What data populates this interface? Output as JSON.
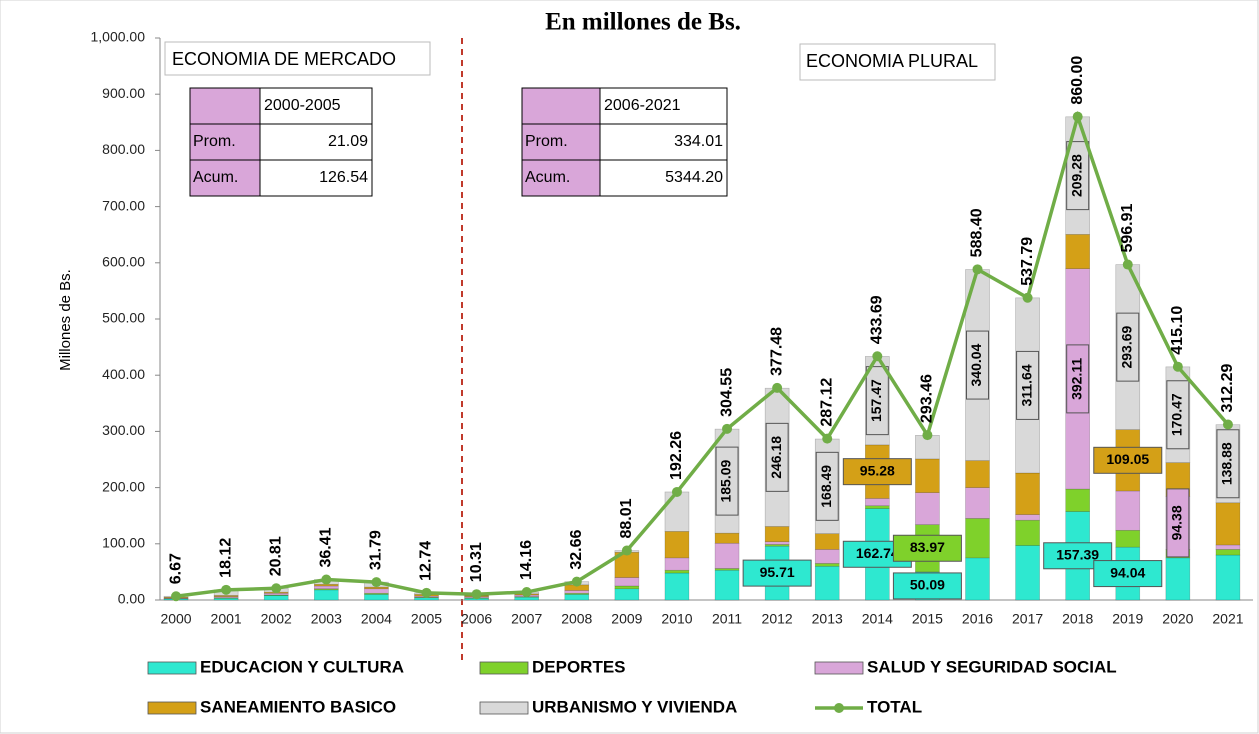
{
  "chart_data": {
    "type": "bar",
    "title": "En millones de Bs.",
    "y_label": "Millones de Bs.",
    "annotations": [
      "ECONOMIA DE MERCADO",
      "ECONOMIA PLURAL"
    ],
    "tables": [
      {
        "header": "2000-2005",
        "rows": [
          [
            "Prom.",
            "21.09"
          ],
          [
            "Acum.",
            "126.54"
          ]
        ]
      },
      {
        "header": "2006-2021",
        "rows": [
          [
            "Prom.",
            "334.01"
          ],
          [
            "Acum.",
            "5344.20"
          ]
        ]
      }
    ],
    "categories": [
      "2000",
      "2001",
      "2002",
      "2003",
      "2004",
      "2005",
      "2006",
      "2007",
      "2008",
      "2009",
      "2010",
      "2011",
      "2012",
      "2013",
      "2014",
      "2015",
      "2016",
      "2017",
      "2018",
      "2019",
      "2020",
      "2021"
    ],
    "ylim": [
      0,
      1000
    ],
    "yticks": [
      {
        "value": 0,
        "label": "0.00"
      },
      {
        "value": 100,
        "label": "100.00"
      },
      {
        "value": 200,
        "label": "200.00"
      },
      {
        "value": 300,
        "label": "300.00"
      },
      {
        "value": 400,
        "label": "400.00"
      },
      {
        "value": 500,
        "label": "500.00"
      },
      {
        "value": 600,
        "label": "600.00"
      },
      {
        "value": 700,
        "label": "700.00"
      },
      {
        "value": 800,
        "label": "800.00"
      },
      {
        "value": 900,
        "label": "900.00"
      },
      {
        "value": 1000,
        "label": "1,000.00"
      }
    ],
    "series": [
      {
        "name": "EDUCACION Y CULTURA",
        "color": "#2ee8d0",
        "values": [
          2,
          3,
          8,
          18,
          10,
          4,
          3,
          5,
          10,
          20,
          48,
          53,
          95.71,
          60,
          162.74,
          50.09,
          75,
          97,
          157.39,
          94.04,
          75,
          80
        ],
        "value_labels": [
          null,
          null,
          null,
          null,
          null,
          null,
          null,
          null,
          null,
          null,
          null,
          null,
          "95.71",
          null,
          "162.74",
          "50.09",
          null,
          null,
          "157.39",
          "94.04",
          null,
          null
        ]
      },
      {
        "name": "DEPORTES",
        "color": "#7fd12b",
        "values": [
          0.5,
          1,
          1,
          2,
          2,
          1,
          1,
          1,
          2,
          5,
          5,
          3,
          3,
          5,
          5,
          83.97,
          70,
          45,
          40,
          30,
          15,
          10
        ],
        "value_labels": [
          null,
          null,
          null,
          null,
          null,
          null,
          null,
          null,
          null,
          null,
          null,
          null,
          null,
          null,
          null,
          "83.97",
          null,
          null,
          null,
          null,
          null,
          null
        ]
      },
      {
        "name": "SALUD Y SEGURIDAD SOCIAL",
        "color": "#d9a6d9",
        "values": [
          1,
          2,
          3,
          5,
          8,
          2,
          2,
          3,
          5,
          15,
          22,
          45,
          5,
          25,
          13,
          57,
          55,
          10,
          392.11,
          70,
          94.38,
          8
        ],
        "value_labels": [
          null,
          null,
          null,
          null,
          null,
          null,
          null,
          null,
          null,
          null,
          null,
          null,
          null,
          null,
          null,
          null,
          null,
          null,
          "392.11",
          null,
          "94.38",
          null
        ]
      },
      {
        "name": "SANEAMIENTO BASICO",
        "color": "#d4a017",
        "values": [
          1.5,
          2,
          2,
          3,
          3,
          3,
          2,
          2,
          10,
          45,
          47,
          18,
          27,
          28,
          95.28,
          60,
          48,
          74,
          61,
          109.05,
          60,
          75
        ],
        "value_labels": [
          null,
          null,
          null,
          null,
          null,
          null,
          null,
          null,
          null,
          null,
          null,
          null,
          null,
          null,
          "95.28",
          null,
          null,
          null,
          null,
          "109.05",
          null,
          null
        ]
      },
      {
        "name": "URBANISMO Y VIVIENDA",
        "color": "#d9d9d9",
        "values": [
          1.67,
          10.12,
          6.81,
          8.41,
          8.79,
          2.74,
          2.31,
          3.16,
          5.66,
          3.01,
          70.26,
          185.09,
          246.18,
          168.49,
          157.47,
          42,
          340.04,
          311.64,
          209.28,
          293.69,
          170.47,
          138.88
        ],
        "value_labels": [
          null,
          null,
          null,
          null,
          null,
          null,
          null,
          null,
          null,
          null,
          null,
          "185.09",
          "246.18",
          "168.49",
          "157.47",
          null,
          "340.04",
          "311.64",
          "209.28",
          "293.69",
          "170.47",
          "138.88"
        ]
      },
      {
        "name": "TOTAL",
        "color": "#70ad47",
        "type": "line",
        "values": [
          6.67,
          18.12,
          20.81,
          36.41,
          31.79,
          12.74,
          10.31,
          14.16,
          32.66,
          88.01,
          192.26,
          304.55,
          377.48,
          287.12,
          433.69,
          293.46,
          588.4,
          537.79,
          860,
          596.91,
          415.1,
          312.29
        ],
        "value_labels": [
          "6.67",
          "18.12",
          "20.81",
          "36.41",
          "31.79",
          "12.74",
          "10.31",
          "14.16",
          "32.66",
          "88.01",
          "192.26",
          "304.55",
          "377.48",
          "287.12",
          "433.69",
          "293.46",
          "588.40",
          "537.79",
          "860.00",
          "596.91",
          "415.10",
          "312.29"
        ]
      }
    ]
  }
}
